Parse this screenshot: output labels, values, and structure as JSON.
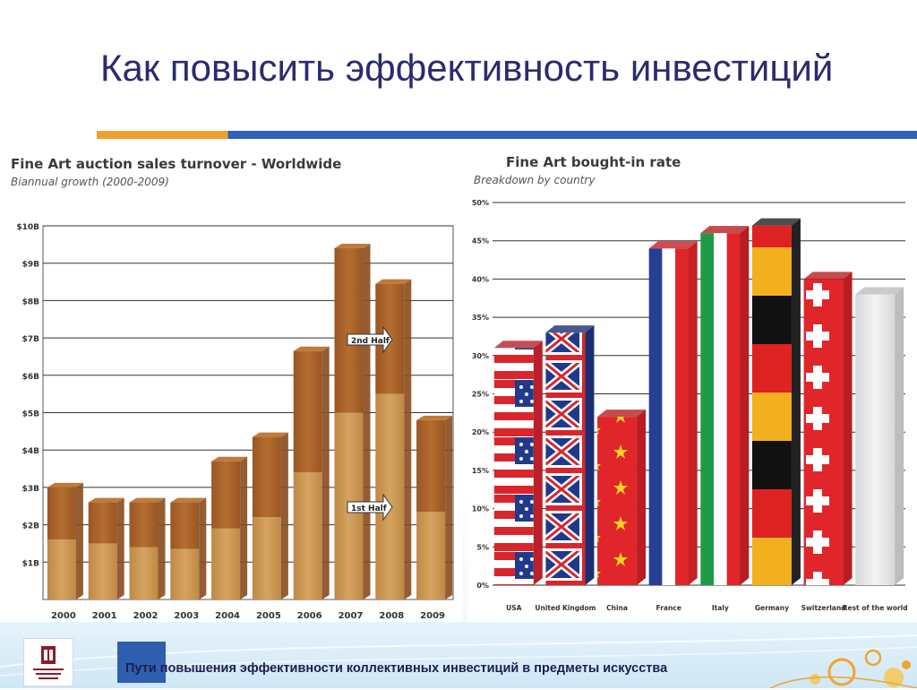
{
  "slide": {
    "title": "Как повысить эффективность инвестиций",
    "footer": "Пути повышения эффективности коллективных инвестиций в предметы искусства"
  },
  "colors": {
    "title": "#2b2b6e",
    "rule_orange": "#f0a030",
    "rule_blue": "#2f62b8",
    "bar_top": "#a8622a",
    "bar_bottom": "#c9934e"
  },
  "chart_data": [
    {
      "type": "bar",
      "title": "Fine Art auction sales turnover - Worldwide",
      "subtitle": "Biannual growth (2000-2009)",
      "categories": [
        "2000",
        "2001",
        "2002",
        "2003",
        "2004",
        "2005",
        "2006",
        "2007",
        "2008",
        "2009"
      ],
      "series": [
        {
          "name": "1st Half",
          "values": [
            1.6,
            1.5,
            1.4,
            1.35,
            1.9,
            2.2,
            3.4,
            5.0,
            5.5,
            2.35
          ]
        },
        {
          "name": "2nd Half",
          "values": [
            1.4,
            1.1,
            1.2,
            1.25,
            1.8,
            2.15,
            3.25,
            4.4,
            2.95,
            2.45
          ]
        }
      ],
      "stacked": true,
      "yticks": [
        "$1B",
        "$2B",
        "$3B",
        "$4B",
        "$5B",
        "$6B",
        "$7B",
        "$8B",
        "$9B",
        "$10B"
      ],
      "ylim": [
        0,
        10
      ],
      "grid": true,
      "annotations": [
        "2nd Half",
        "1st Half"
      ]
    },
    {
      "type": "bar",
      "title": "Fine Art bought-in rate",
      "subtitle": "Breakdown by country",
      "categories": [
        "USA",
        "United Kingdom",
        "China",
        "France",
        "Italy",
        "Germany",
        "Switzerland",
        "Rest of the world"
      ],
      "values": [
        31,
        33,
        22,
        44,
        46,
        47,
        40,
        38
      ],
      "bar_fills": [
        "flag-usa",
        "flag-uk",
        "flag-china",
        "flag-france",
        "flag-italy",
        "flag-germany",
        "flag-switzerland",
        "plain-gray"
      ],
      "yticks": [
        "0%",
        "5%",
        "10%",
        "15%",
        "20%",
        "25%",
        "30%",
        "35%",
        "40%",
        "45%",
        "50%"
      ],
      "ylim": [
        0,
        50
      ],
      "grid": true
    }
  ]
}
